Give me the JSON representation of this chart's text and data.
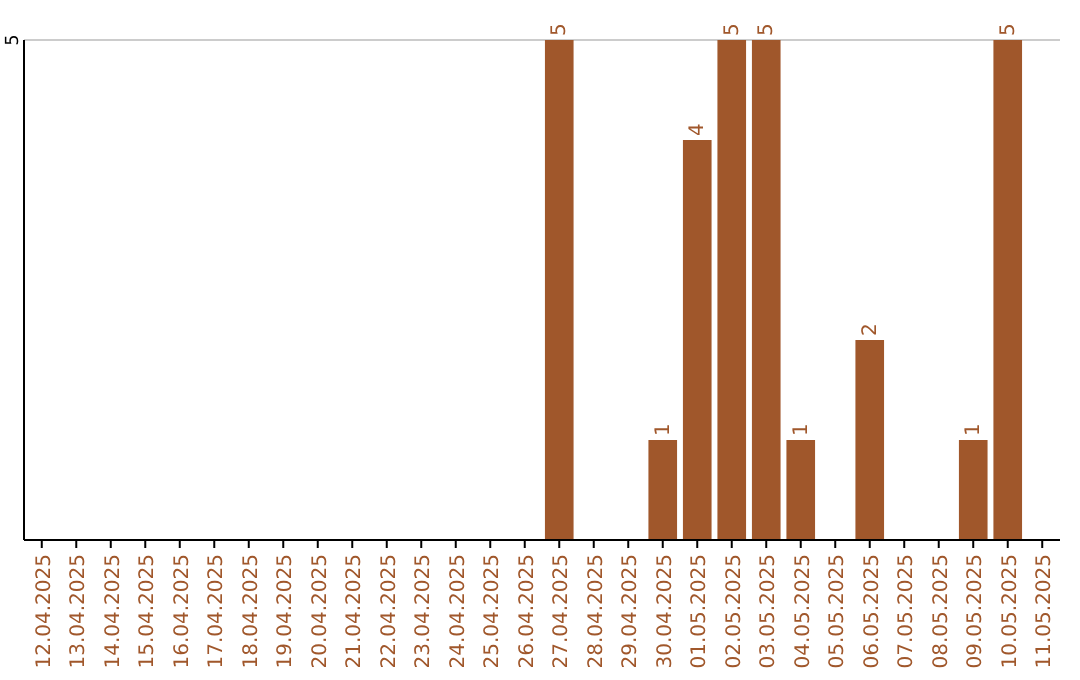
{
  "chart_data": {
    "type": "bar",
    "categories": [
      "12.04.2025",
      "13.04.2025",
      "14.04.2025",
      "15.04.2025",
      "16.04.2025",
      "17.04.2025",
      "18.04.2025",
      "19.04.2025",
      "20.04.2025",
      "21.04.2025",
      "22.04.2025",
      "23.04.2025",
      "24.04.2025",
      "25.04.2025",
      "26.04.2025",
      "27.04.2025",
      "28.04.2025",
      "29.04.2025",
      "30.04.2025",
      "01.05.2025",
      "02.05.2025",
      "03.05.2025",
      "04.05.2025",
      "05.05.2025",
      "06.05.2025",
      "07.05.2025",
      "08.05.2025",
      "09.05.2025",
      "10.05.2025",
      "11.05.2025"
    ],
    "values": [
      null,
      null,
      null,
      null,
      null,
      null,
      null,
      null,
      null,
      null,
      null,
      null,
      null,
      null,
      null,
      5,
      null,
      null,
      1,
      4,
      5,
      5,
      1,
      null,
      2,
      null,
      null,
      1,
      5,
      null
    ],
    "color": "#a0572b",
    "ylim": [
      0,
      5
    ],
    "yticks": [
      5
    ],
    "data_labels": true
  }
}
